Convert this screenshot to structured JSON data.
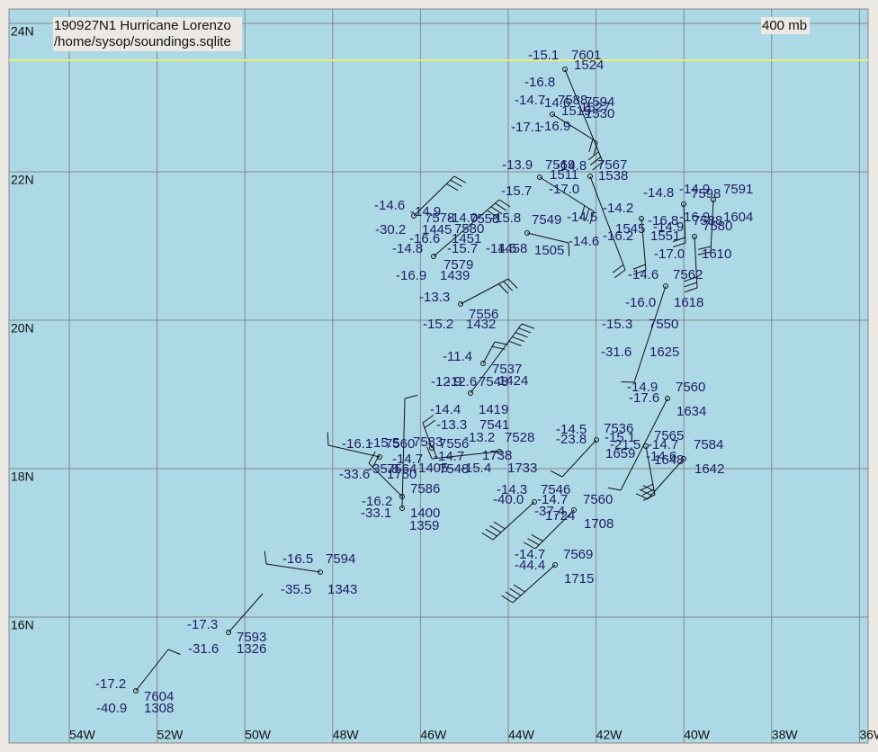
{
  "header": {
    "title": "190927N1 Hurricane Lorenzo",
    "source": "/home/sysop/soundings.sqlite",
    "level": "400 mb"
  },
  "lat_labels": [
    "24N",
    "22N",
    "20N",
    "18N",
    "16N"
  ],
  "lon_labels": [
    "54W",
    "52W",
    "50W",
    "48W",
    "46W",
    "44W",
    "42W",
    "40W",
    "38W",
    "36W"
  ],
  "station_labels": [
    "-15.1",
    "7601",
    "1524",
    "-16.8",
    "-14.7",
    "-14.6",
    "7588",
    "7594",
    "1519",
    "1527",
    "1530",
    "-17.1",
    "-16.9",
    "-13.9",
    "7569",
    "-14.8",
    "1511",
    "7567",
    "1538",
    "-17.0",
    "-15.7",
    "-14.8",
    "-14.9",
    "7598",
    "7591",
    "-14.6",
    "-14.9",
    "-14.2",
    "-14.5",
    "7578",
    "-14.0",
    "-15.8",
    "7549",
    "7558",
    "-16.8",
    "-16.9",
    "7588",
    "1604",
    "-30.2",
    "1445",
    "7580",
    "1545",
    "-14.9",
    "7580",
    "-16.6",
    "1451",
    "-16.2",
    "1551",
    "-14.6",
    "-14.8",
    "-15.7",
    "-14.5",
    "1458",
    "1505",
    "-17.0",
    "1610",
    "7579",
    "-16.9",
    "1439",
    "-14.6",
    "7562",
    "-13.3",
    "-16.0",
    "1618",
    "7556",
    "-15.2",
    "1432",
    "-15.3",
    "7550",
    "-31.6",
    "1625",
    "-11.4",
    "7537",
    "-12.9",
    "-12.6",
    "7548",
    "1424",
    "-14.9",
    "7560",
    "-17.6",
    "1634",
    "-14.4",
    "1419",
    "-13.3",
    "7541",
    "-14.5",
    "7536",
    "-13.2",
    "7528",
    "-23.8",
    "-15.1",
    "7565",
    "-15.5",
    "-16.1",
    "7560",
    "7583",
    "7556",
    "-21.5",
    "-14.7",
    "7584",
    "-14.7",
    "-14.7",
    "1738",
    "1659",
    "-14.6",
    "1648",
    "-35.8",
    "7564",
    "1405",
    "7548",
    "-15.4",
    "1733",
    "1642",
    "-33.6",
    "1750",
    "-14.3",
    "7546",
    "7586",
    "-40.0",
    "-14.7",
    "7560",
    "-16.2",
    "-37.4",
    "1724",
    "-33.1",
    "1400",
    "1708",
    "1359",
    "-14.7",
    "7569",
    "-44.4",
    "1715",
    "-16.5",
    "7594",
    "-35.5",
    "1343",
    "-17.3",
    "7593",
    "-31.6",
    "1326",
    "-17.2",
    "7604",
    "-40.9",
    "1308"
  ]
}
